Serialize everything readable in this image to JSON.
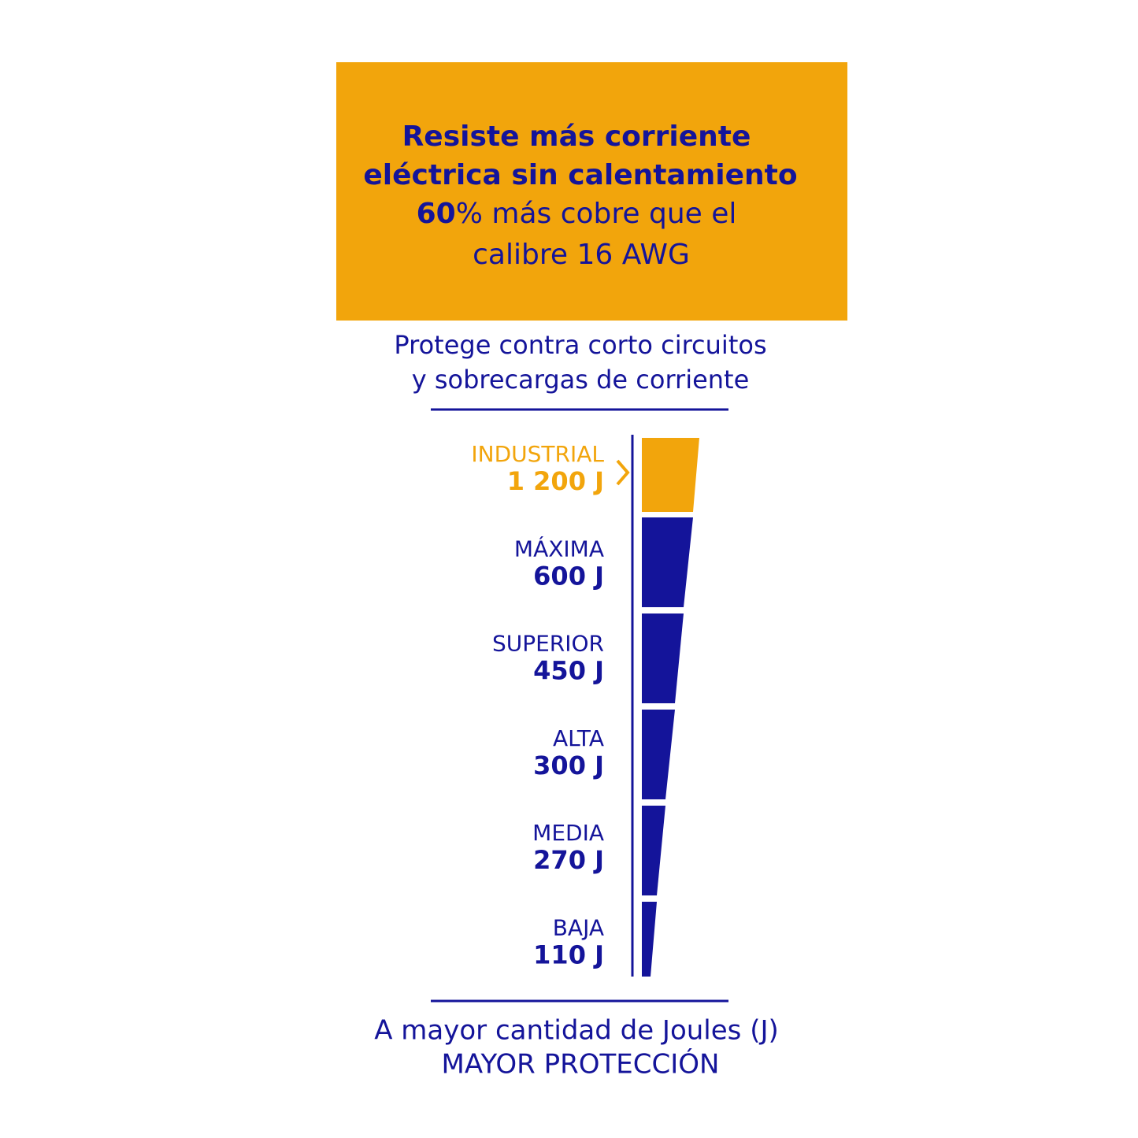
{
  "header": {
    "lines": [
      "Resiste más corriente",
      "eléctrica sin calentamiento"
    ],
    "highlight": "60",
    "line3_rest": "% más cobre que el",
    "line4": "calibre 16 AWG"
  },
  "subtitle": [
    "Protege contra corto circuitos",
    "y sobrecargas de corriente"
  ],
  "levels": [
    {
      "name": "INDUSTRIAL",
      "energy": "1 200 J",
      "color": "#f2a50c"
    },
    {
      "name": "MÁXIMA",
      "energy": "600 J",
      "color": "#14149a"
    },
    {
      "name": "SUPERIOR",
      "energy": "450 J",
      "color": "#14149a"
    },
    {
      "name": "ALTA",
      "energy": "300 J",
      "color": "#14149a"
    },
    {
      "name": "MEDIA",
      "energy": "270 J",
      "color": "#14149a"
    },
    {
      "name": "BAJA",
      "energy": "110 J",
      "color": "#14149a"
    }
  ],
  "footer": [
    "A mayor cantidad de Joules (J)",
    "MAYOR PROTECCIÓN"
  ]
}
